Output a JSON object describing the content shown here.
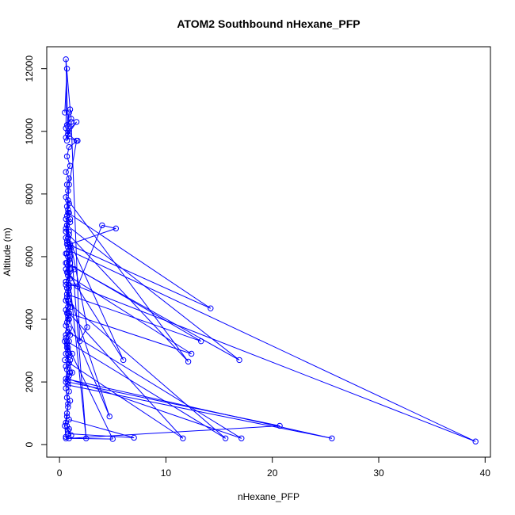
{
  "chart_data": {
    "type": "scatter",
    "title": "ATOM2 Southbound nHexane_PFP",
    "xlabel": "nHexane_PFP",
    "ylabel": "Altitude (m)",
    "xlim": [
      -1.2,
      40.5
    ],
    "ylim": [
      -400,
      12700
    ],
    "xticks": [
      0,
      10,
      20,
      30,
      40
    ],
    "yticks": [
      0,
      2000,
      4000,
      6000,
      8000,
      10000,
      12000
    ],
    "grid": false,
    "legend": "none",
    "color": "#0000ff",
    "marker": "open-circle",
    "connected": true,
    "x": [
      0.5,
      0.7,
      0.6,
      0.8,
      0.6,
      1.0,
      1.1,
      0.7,
      0.9,
      0.8,
      1.6,
      0.6,
      1.7,
      0.9,
      0.7,
      1.0,
      0.6,
      0.9,
      0.7,
      0.8,
      0.6,
      0.9,
      0.8,
      0.7,
      1.0,
      0.6,
      0.9,
      0.7,
      0.8,
      0.6,
      0.9,
      0.8,
      0.7,
      1.0,
      0.6,
      0.8,
      0.7,
      0.9,
      0.6,
      0.8,
      0.7,
      0.9,
      1.0,
      0.7,
      0.8,
      0.6,
      0.9,
      1.2,
      0.6,
      25.6,
      0.8,
      0.9,
      0.7,
      1.0,
      0.8,
      0.7,
      0.6,
      0.9,
      0.8,
      7.0,
      0.9,
      0.7,
      0.8,
      1.1,
      0.6,
      0.9,
      20.7,
      0.8,
      0.7,
      1.0,
      0.9,
      0.6,
      0.8,
      0.7,
      0.5,
      0.6,
      5.0,
      0.7,
      0.8,
      0.9,
      0.6,
      1.0,
      0.8,
      17.1,
      0.8,
      0.6,
      0.9,
      0.7,
      1.2,
      0.5,
      11.6,
      0.9,
      0.8,
      0.6,
      1.0,
      0.7,
      15.6,
      0.6,
      0.8,
      0.7,
      0.9,
      4.7,
      0.7,
      0.9,
      0.6,
      1.1,
      0.8,
      12.4,
      0.8,
      0.6,
      0.9,
      0.7,
      13.3,
      0.7,
      1.0,
      0.8,
      0.6,
      39.1,
      0.9,
      0.8,
      1.0,
      0.6,
      6.0,
      0.8,
      0.7,
      0.9,
      1.0,
      0.6,
      16.9,
      0.7,
      0.9,
      0.6,
      0.8,
      14.2,
      0.8,
      1.0,
      0.7,
      0.6,
      12.1,
      0.8,
      0.7,
      0.9,
      0.6,
      2.6,
      1.9,
      1.1,
      0.7,
      0.8,
      1.6,
      0.9,
      0.6,
      1.1,
      2.5,
      0.7,
      0.8,
      1.4,
      0.6,
      0.9,
      1.7,
      4.0,
      5.3,
      1.0,
      0.8,
      0.6,
      0.7,
      0.5,
      0.8,
      0.6
    ],
    "y": [
      10600,
      12000,
      10100,
      9900,
      12300,
      10700,
      10400,
      10200,
      10600,
      10000,
      10300,
      9800,
      9700,
      9500,
      9200,
      8900,
      8700,
      8500,
      8300,
      8100,
      7900,
      7700,
      7500,
      7300,
      7100,
      6900,
      6700,
      6500,
      6300,
      6100,
      5900,
      5700,
      5500,
      5300,
      5100,
      4900,
      4700,
      4500,
      4300,
      4100,
      3900,
      3700,
      3500,
      3300,
      3100,
      2900,
      2600,
      2300,
      2100,
      200,
      1900,
      1700,
      1500,
      1400,
      1300,
      900,
      700,
      500,
      350,
      220,
      800,
      600,
      450,
      300,
      250,
      200,
      600,
      2000,
      2400,
      2700,
      2200,
      1800,
      1200,
      1000,
      600,
      200,
      180,
      3200,
      3000,
      2800,
      2500,
      2300,
      2100,
      200,
      3600,
      3400,
      3300,
      3100,
      2900,
      2700,
      200,
      4200,
      4000,
      3800,
      3500,
      3300,
      200,
      4600,
      4400,
      4200,
      4000,
      900,
      5000,
      4800,
      4600,
      4400,
      4200,
      2900,
      5400,
      5200,
      5000,
      4800,
      3300,
      5800,
      5600,
      5400,
      5200,
      100,
      6200,
      6000,
      5800,
      5600,
      2700,
      6600,
      6400,
      6200,
      6000,
      5800,
      2700,
      7000,
      6800,
      6600,
      6400,
      4350,
      7400,
      7200,
      7000,
      6800,
      2650,
      7800,
      7600,
      7400,
      7200,
      3750,
      3300,
      10300,
      9700,
      9900,
      9700,
      8300,
      6800,
      6300,
      200,
      6100,
      5500,
      5600,
      5200,
      5100,
      5050,
      7000,
      6900,
      6400,
      4600,
      3500,
      3200,
      3300,
      2900,
      2000
    ]
  }
}
